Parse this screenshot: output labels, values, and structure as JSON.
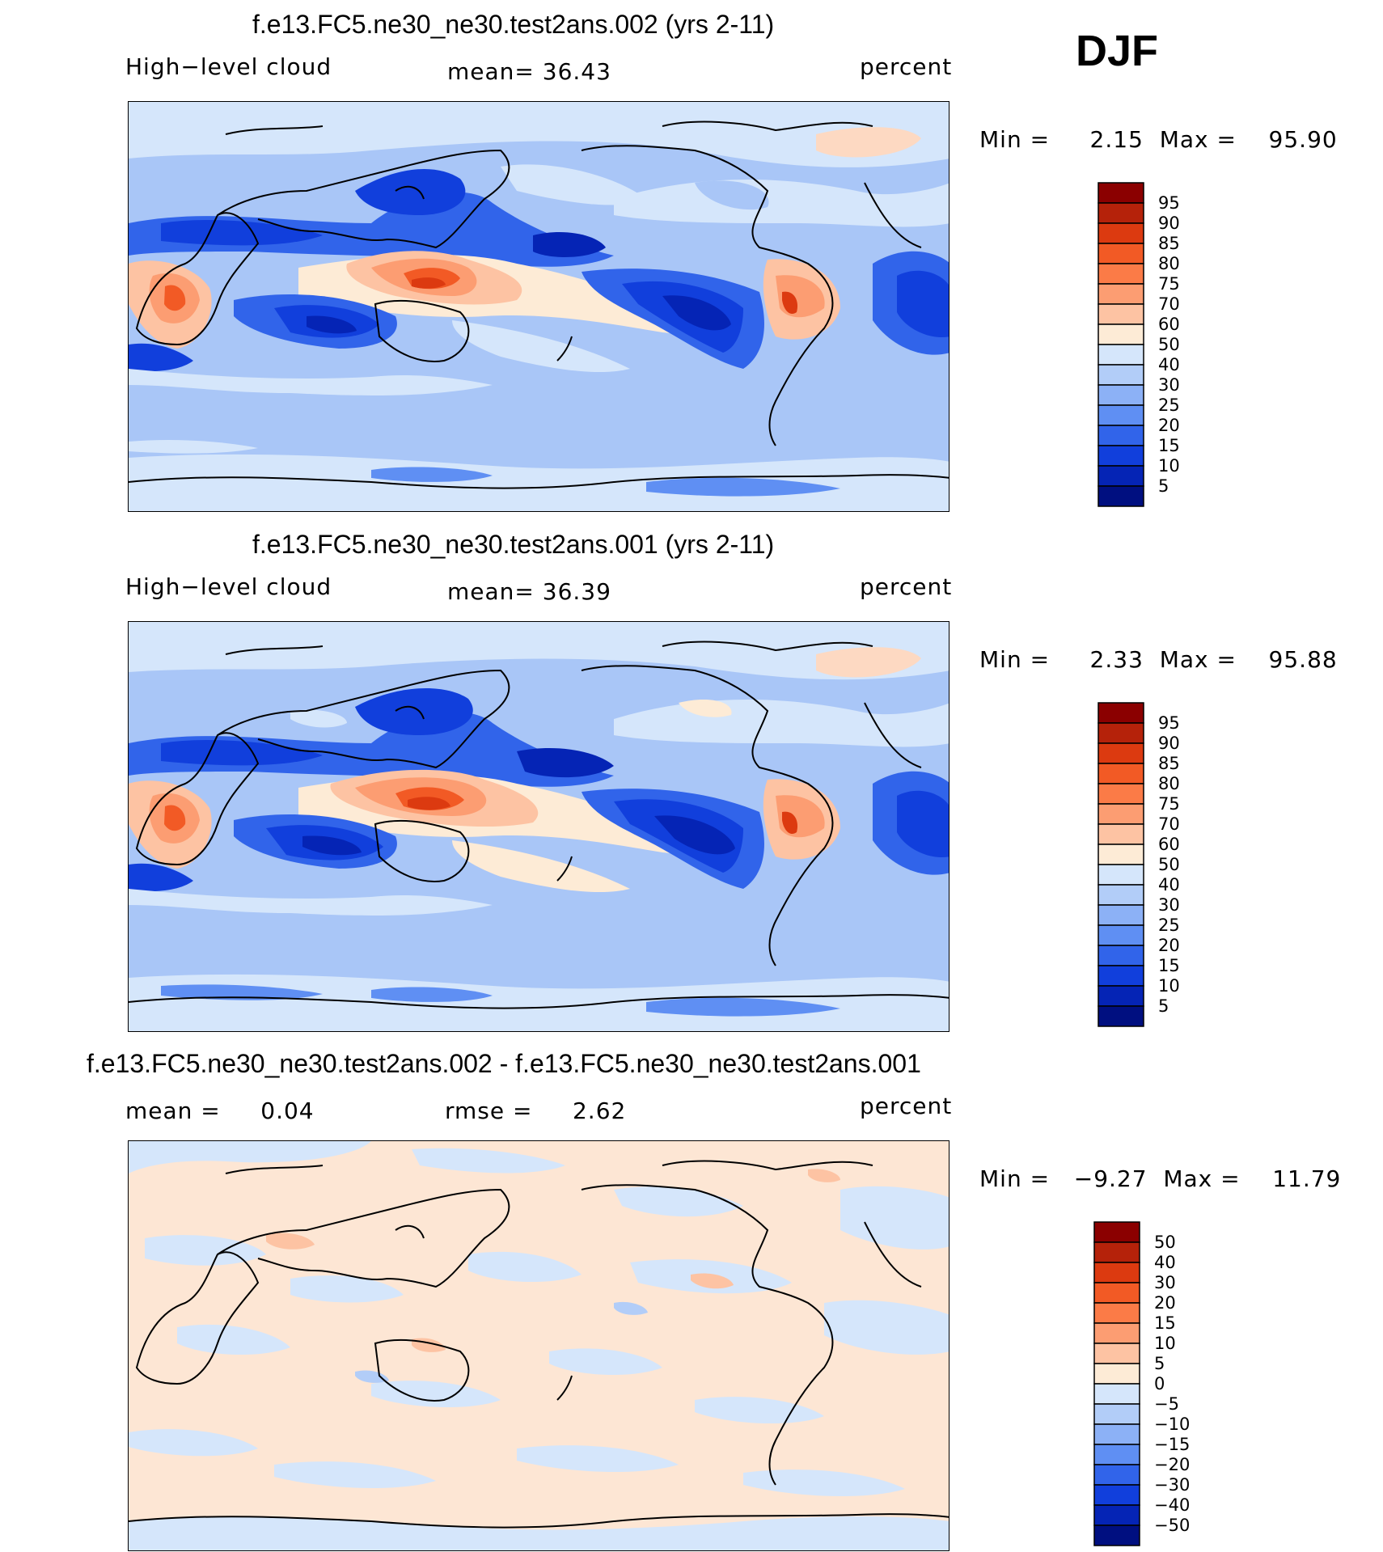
{
  "season": "DJF",
  "panels": [
    {
      "id": "p1",
      "title": "f.e13.FC5.ne30_ne30.test2ans.002 (yrs 2-11)",
      "left_label": "High−level cloud",
      "center_label": "mean=   36.43",
      "right_label": "percent",
      "minmax": "Min =     2.15  Max =    95.90",
      "colorbar_labels": [
        "95",
        "90",
        "85",
        "80",
        "75",
        "70",
        "60",
        "50",
        "40",
        "30",
        "25",
        "20",
        "15",
        "10",
        "5"
      ],
      "colorbar_colors": [
        "#8b0000",
        "#b5220a",
        "#dc3a10",
        "#f25a25",
        "#fb7b47",
        "#fc9d72",
        "#fdc3a3",
        "#fdebd6",
        "#d5e6fb",
        "#b2cdf8",
        "#8cb1f6",
        "#5f8ff3",
        "#3164ea",
        "#113fdc",
        "#0524b5",
        "#000f80"
      ]
    },
    {
      "id": "p2",
      "title": "f.e13.FC5.ne30_ne30.test2ans.001 (yrs 2-11)",
      "left_label": "High−level cloud",
      "center_label": "mean=   36.39",
      "right_label": "percent",
      "minmax": "Min =     2.33  Max =    95.88",
      "colorbar_labels": [
        "95",
        "90",
        "85",
        "80",
        "75",
        "70",
        "60",
        "50",
        "40",
        "30",
        "25",
        "20",
        "15",
        "10",
        "5"
      ],
      "colorbar_colors": [
        "#8b0000",
        "#b5220a",
        "#dc3a10",
        "#f25a25",
        "#fb7b47",
        "#fc9d72",
        "#fdc3a3",
        "#fdebd6",
        "#d5e6fb",
        "#b2cdf8",
        "#8cb1f6",
        "#5f8ff3",
        "#3164ea",
        "#113fdc",
        "#0524b5",
        "#000f80"
      ]
    },
    {
      "id": "p3",
      "title": "f.e13.FC5.ne30_ne30.test2ans.002 - f.e13.FC5.ne30_ne30.test2ans.001",
      "left_label": "mean =     0.04",
      "center_label": "rmse =     2.62",
      "right_label": "percent",
      "minmax": "Min =   −9.27  Max =    11.79",
      "colorbar_labels": [
        "50",
        "40",
        "30",
        "20",
        "15",
        "10",
        "5",
        "0",
        "−5",
        "−10",
        "−15",
        "−20",
        "−30",
        "−40",
        "−50"
      ],
      "colorbar_colors": [
        "#8b0000",
        "#b5220a",
        "#dc3a10",
        "#f25a25",
        "#fb7b47",
        "#fc9d72",
        "#fdc3a3",
        "#fdebd6",
        "#d5e6fb",
        "#b2cdf8",
        "#8cb1f6",
        "#5f8ff3",
        "#3164ea",
        "#113fdc",
        "#0524b5",
        "#000f80"
      ]
    }
  ]
}
